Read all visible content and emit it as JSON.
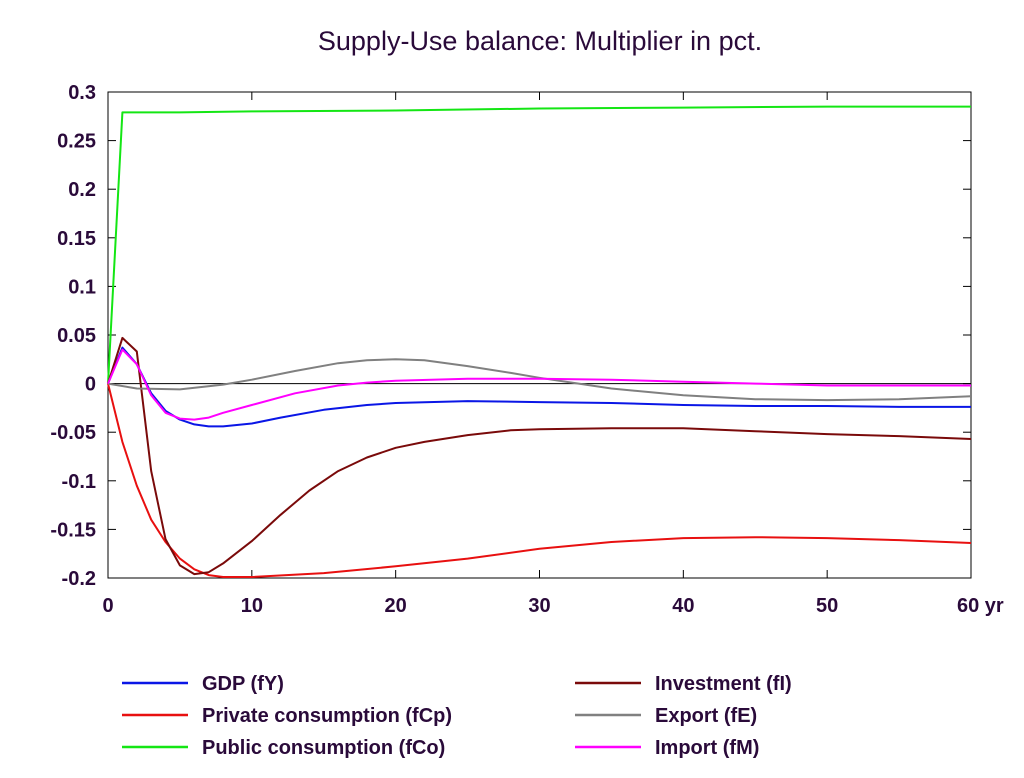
{
  "chart_data": {
    "type": "line",
    "title": "Supply-Use balance: Multiplier in pct.",
    "xlabel": "",
    "ylabel": "",
    "xlim": [
      0,
      60
    ],
    "ylim": [
      -0.2,
      0.3
    ],
    "x_ticks": [
      0,
      10,
      20,
      30,
      40,
      50,
      60
    ],
    "x_tick_labels": [
      "0",
      "10",
      "20",
      "30",
      "40",
      "50",
      "60 yr"
    ],
    "y_ticks": [
      0.3,
      0.25,
      0.2,
      0.15,
      0.1,
      0.05,
      0,
      -0.05,
      -0.1,
      -0.15,
      -0.2
    ],
    "y_tick_labels": [
      "0.3",
      "0.25",
      "0.2",
      "0.15",
      "0.1",
      "0.05",
      "0",
      "-0.05",
      "-0.1",
      "-0.15",
      "-0.2"
    ],
    "zero_line": true,
    "grid": false,
    "legend_position": "bottom",
    "series": [
      {
        "name": "GDP (fY)",
        "color": "#0a16e6",
        "points": [
          [
            0,
            0
          ],
          [
            1,
            0.037
          ],
          [
            2,
            0.02
          ],
          [
            3,
            -0.01
          ],
          [
            4,
            -0.028
          ],
          [
            5,
            -0.037
          ],
          [
            6,
            -0.042
          ],
          [
            7,
            -0.044
          ],
          [
            8,
            -0.044
          ],
          [
            10,
            -0.041
          ],
          [
            12,
            -0.035
          ],
          [
            15,
            -0.027
          ],
          [
            18,
            -0.022
          ],
          [
            20,
            -0.02
          ],
          [
            25,
            -0.018
          ],
          [
            30,
            -0.019
          ],
          [
            35,
            -0.02
          ],
          [
            40,
            -0.022
          ],
          [
            45,
            -0.023
          ],
          [
            50,
            -0.023
          ],
          [
            55,
            -0.024
          ],
          [
            60,
            -0.024
          ]
        ]
      },
      {
        "name": "Private consumption (fCp)",
        "color": "#e81010",
        "points": [
          [
            0,
            0
          ],
          [
            1,
            -0.06
          ],
          [
            2,
            -0.105
          ],
          [
            3,
            -0.14
          ],
          [
            4,
            -0.163
          ],
          [
            5,
            -0.18
          ],
          [
            6,
            -0.191
          ],
          [
            7,
            -0.197
          ],
          [
            8,
            -0.199
          ],
          [
            10,
            -0.199
          ],
          [
            15,
            -0.195
          ],
          [
            20,
            -0.188
          ],
          [
            25,
            -0.18
          ],
          [
            30,
            -0.17
          ],
          [
            35,
            -0.163
          ],
          [
            40,
            -0.159
          ],
          [
            45,
            -0.158
          ],
          [
            50,
            -0.159
          ],
          [
            55,
            -0.161
          ],
          [
            60,
            -0.164
          ]
        ]
      },
      {
        "name": "Public consumption (fCo)",
        "color": "#14e614",
        "points": [
          [
            0,
            0
          ],
          [
            1,
            0.279
          ],
          [
            5,
            0.279
          ],
          [
            10,
            0.28
          ],
          [
            20,
            0.281
          ],
          [
            30,
            0.283
          ],
          [
            40,
            0.284
          ],
          [
            50,
            0.285
          ],
          [
            60,
            0.285
          ]
        ]
      },
      {
        "name": "Investment (fI)",
        "color": "#7a0a0a",
        "points": [
          [
            0,
            0
          ],
          [
            1,
            0.047
          ],
          [
            2,
            0.033
          ],
          [
            3,
            -0.09
          ],
          [
            4,
            -0.16
          ],
          [
            5,
            -0.187
          ],
          [
            6,
            -0.196
          ],
          [
            7,
            -0.194
          ],
          [
            8,
            -0.185
          ],
          [
            10,
            -0.162
          ],
          [
            12,
            -0.135
          ],
          [
            14,
            -0.11
          ],
          [
            16,
            -0.09
          ],
          [
            18,
            -0.076
          ],
          [
            20,
            -0.066
          ],
          [
            22,
            -0.06
          ],
          [
            25,
            -0.053
          ],
          [
            28,
            -0.048
          ],
          [
            30,
            -0.047
          ],
          [
            35,
            -0.046
          ],
          [
            40,
            -0.046
          ],
          [
            45,
            -0.049
          ],
          [
            50,
            -0.052
          ],
          [
            55,
            -0.054
          ],
          [
            60,
            -0.057
          ]
        ]
      },
      {
        "name": "Export (fE)",
        "color": "#808080",
        "points": [
          [
            0,
            0
          ],
          [
            2,
            -0.005
          ],
          [
            5,
            -0.006
          ],
          [
            8,
            -0.001
          ],
          [
            10,
            0.004
          ],
          [
            13,
            0.013
          ],
          [
            16,
            0.021
          ],
          [
            18,
            0.024
          ],
          [
            20,
            0.025
          ],
          [
            22,
            0.024
          ],
          [
            25,
            0.018
          ],
          [
            28,
            0.011
          ],
          [
            30,
            0.006
          ],
          [
            35,
            -0.005
          ],
          [
            40,
            -0.012
          ],
          [
            45,
            -0.016
          ],
          [
            50,
            -0.017
          ],
          [
            55,
            -0.016
          ],
          [
            60,
            -0.013
          ]
        ]
      },
      {
        "name": "Import (fM)",
        "color": "#ff00ff",
        "points": [
          [
            0,
            0
          ],
          [
            1,
            0.035
          ],
          [
            2,
            0.02
          ],
          [
            3,
            -0.012
          ],
          [
            4,
            -0.03
          ],
          [
            5,
            -0.036
          ],
          [
            6,
            -0.037
          ],
          [
            7,
            -0.035
          ],
          [
            8,
            -0.03
          ],
          [
            10,
            -0.022
          ],
          [
            13,
            -0.01
          ],
          [
            16,
            -0.002
          ],
          [
            18,
            0.001
          ],
          [
            20,
            0.003
          ],
          [
            25,
            0.005
          ],
          [
            30,
            0.005
          ],
          [
            35,
            0.004
          ],
          [
            40,
            0.002
          ],
          [
            45,
            0.0
          ],
          [
            50,
            -0.002
          ],
          [
            55,
            -0.002
          ],
          [
            60,
            -0.002
          ]
        ]
      }
    ]
  }
}
